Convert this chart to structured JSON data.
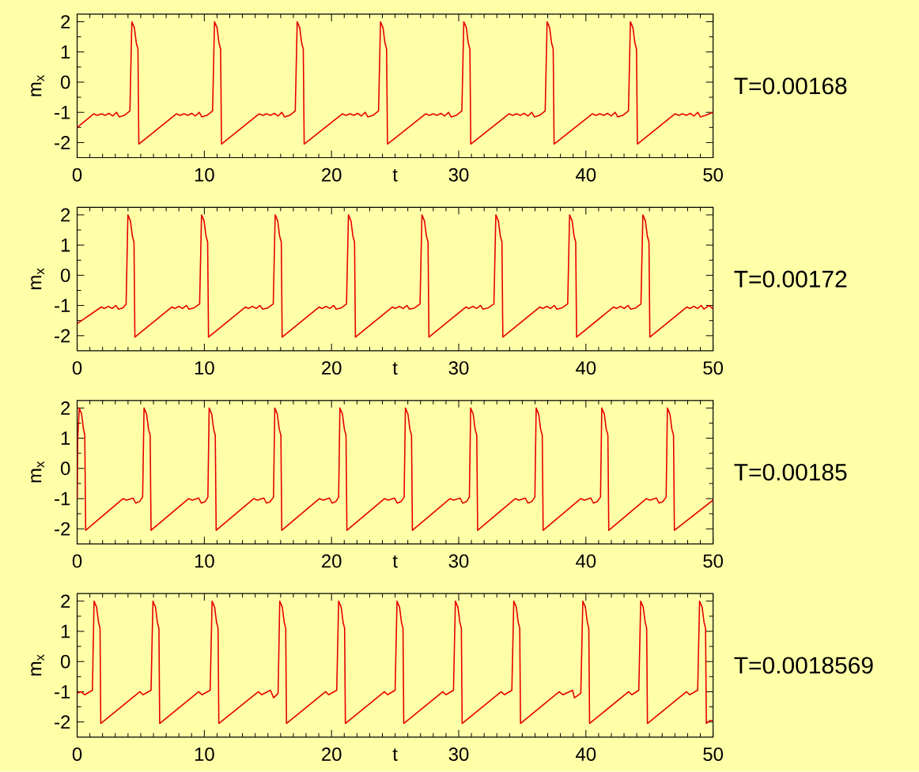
{
  "chart_data": [
    {
      "type": "line",
      "xlabel": "t",
      "ylabel": "m$_{x}$",
      "annotations": [
        "T=0.00168"
      ],
      "xlim": [
        0,
        50
      ],
      "ylim": [
        -2.5,
        2.25
      ],
      "xticks": [
        0,
        10,
        20,
        30,
        40,
        50
      ],
      "yticks": [
        -2,
        -1,
        0,
        1,
        2
      ],
      "color": "#e60000",
      "x": [
        0,
        1.3,
        1.6,
        1.9,
        2.2,
        2.5,
        2.8,
        3.1,
        3.3,
        3.7,
        4.15,
        4.3,
        4.5,
        4.65,
        4.78,
        4.85,
        7.8,
        8.1,
        8.4,
        8.7,
        9.0,
        9.3,
        9.6,
        9.8,
        10.2,
        10.65,
        10.8,
        11.0,
        11.15,
        11.28,
        11.35,
        14.3,
        14.6,
        14.9,
        15.2,
        15.5,
        15.8,
        16.1,
        16.3,
        16.7,
        17.15,
        17.3,
        17.5,
        17.65,
        17.78,
        17.85,
        20.85,
        21.15,
        21.45,
        21.75,
        22.05,
        22.35,
        22.65,
        22.85,
        23.25,
        23.7,
        23.85,
        24.05,
        24.2,
        24.33,
        24.4,
        27.4,
        27.7,
        28.0,
        28.3,
        28.6,
        28.9,
        29.2,
        29.4,
        29.8,
        30.25,
        30.4,
        30.6,
        30.75,
        30.88,
        30.95,
        33.95,
        34.25,
        34.55,
        34.85,
        35.15,
        35.45,
        35.75,
        35.95,
        36.35,
        36.8,
        36.95,
        37.15,
        37.3,
        37.43,
        37.5,
        40.5,
        40.8,
        41.1,
        41.4,
        41.7,
        42.0,
        42.3,
        42.5,
        42.9,
        43.35,
        43.5,
        43.7,
        43.85,
        43.98,
        44.05,
        47.0,
        47.3,
        47.6,
        47.9,
        48.2,
        48.5,
        48.8,
        49.0,
        49.4,
        50
      ],
      "values": [
        -1.5,
        -1.05,
        -1.1,
        -1.05,
        -1.1,
        -1.03,
        -1.12,
        -1.0,
        -1.15,
        -1.1,
        -0.95,
        2.0,
        1.8,
        1.3,
        1.1,
        -2.05,
        -1.05,
        -1.1,
        -1.05,
        -1.1,
        -1.03,
        -1.12,
        -1.0,
        -1.15,
        -1.1,
        -0.95,
        2.0,
        1.8,
        1.3,
        1.1,
        -2.05,
        -1.05,
        -1.1,
        -1.05,
        -1.1,
        -1.03,
        -1.12,
        -1.0,
        -1.15,
        -1.1,
        -0.95,
        2.0,
        1.8,
        1.3,
        1.1,
        -2.05,
        -1.05,
        -1.1,
        -1.05,
        -1.1,
        -1.03,
        -1.12,
        -1.0,
        -1.15,
        -1.1,
        -0.95,
        2.0,
        1.8,
        1.3,
        1.1,
        -2.05,
        -1.05,
        -1.1,
        -1.05,
        -1.1,
        -1.03,
        -1.12,
        -1.0,
        -1.15,
        -1.1,
        -0.95,
        2.0,
        1.8,
        1.3,
        1.1,
        -2.05,
        -1.05,
        -1.1,
        -1.05,
        -1.1,
        -1.03,
        -1.12,
        -1.0,
        -1.15,
        -1.1,
        -0.95,
        2.0,
        1.8,
        1.3,
        1.1,
        -2.05,
        -1.05,
        -1.1,
        -1.05,
        -1.1,
        -1.03,
        -1.12,
        -1.0,
        -1.15,
        -1.1,
        -0.95,
        2.0,
        1.8,
        1.3,
        1.1,
        -2.05,
        -1.05,
        -1.1,
        -1.05,
        -1.1,
        -1.03,
        -1.12,
        -1.0,
        -1.15,
        -1.1,
        -1.0
      ]
    },
    {
      "type": "line",
      "xlabel": "t",
      "ylabel": "m$_{x}$",
      "annotations": [
        "T=0.00172"
      ],
      "xlim": [
        0,
        50
      ],
      "ylim": [
        -2.5,
        2.25
      ],
      "xticks": [
        0,
        10,
        20,
        30,
        40,
        50
      ],
      "yticks": [
        -2,
        -1,
        0,
        1,
        2
      ],
      "color": "#e60000",
      "x": [
        0,
        1.9,
        2.15,
        2.45,
        2.75,
        3.05,
        3.25,
        3.6,
        3.85,
        3.99,
        4.19,
        4.34,
        4.47,
        4.54,
        7.44,
        7.69,
        7.99,
        8.29,
        8.59,
        8.79,
        9.19,
        9.63,
        9.78,
        9.98,
        10.13,
        10.26,
        10.33,
        13.23,
        13.48,
        13.78,
        14.08,
        14.38,
        14.58,
        14.98,
        15.42,
        15.57,
        15.77,
        15.92,
        16.05,
        16.12,
        19.02,
        19.27,
        19.57,
        19.87,
        20.17,
        20.37,
        20.77,
        21.18,
        21.33,
        21.53,
        21.68,
        21.81,
        21.88,
        24.78,
        25.03,
        25.33,
        25.63,
        25.93,
        26.13,
        26.53,
        26.96,
        27.11,
        27.31,
        27.46,
        27.59,
        27.66,
        30.56,
        30.81,
        31.11,
        31.41,
        31.71,
        31.91,
        32.31,
        32.77,
        32.92,
        33.12,
        33.27,
        33.4,
        33.47,
        36.37,
        36.62,
        36.92,
        37.22,
        37.52,
        37.72,
        38.12,
        38.57,
        38.72,
        38.92,
        39.07,
        39.2,
        39.27,
        42.17,
        42.42,
        42.72,
        43.02,
        43.32,
        43.52,
        43.92,
        44.33,
        44.48,
        44.68,
        44.83,
        44.96,
        45.03,
        47.93,
        48.18,
        48.48,
        48.78,
        49.08,
        49.28,
        49.7,
        50
      ],
      "values": [
        -1.6,
        -1.05,
        -1.1,
        -1.03,
        -1.1,
        -1.0,
        -1.12,
        -1.08,
        -0.95,
        2.0,
        1.8,
        1.3,
        1.1,
        -2.05,
        -1.05,
        -1.1,
        -1.03,
        -1.1,
        -1.0,
        -1.12,
        -1.08,
        -0.95,
        2.0,
        1.8,
        1.3,
        1.1,
        -2.05,
        -1.05,
        -1.1,
        -1.03,
        -1.1,
        -1.0,
        -1.12,
        -1.08,
        -0.95,
        2.0,
        1.8,
        1.3,
        1.1,
        -2.05,
        -1.05,
        -1.1,
        -1.03,
        -1.1,
        -1.0,
        -1.12,
        -1.08,
        -0.95,
        2.0,
        1.8,
        1.3,
        1.1,
        -2.05,
        -1.05,
        -1.1,
        -1.03,
        -1.1,
        -1.0,
        -1.12,
        -1.08,
        -0.95,
        2.0,
        1.8,
        1.3,
        1.1,
        -2.05,
        -1.05,
        -1.1,
        -1.03,
        -1.1,
        -1.0,
        -1.12,
        -1.08,
        -0.95,
        2.0,
        1.8,
        1.3,
        1.1,
        -2.05,
        -1.05,
        -1.1,
        -1.03,
        -1.1,
        -1.0,
        -1.12,
        -1.08,
        -0.95,
        2.0,
        1.8,
        1.3,
        1.1,
        -2.05,
        -1.05,
        -1.1,
        -1.03,
        -1.1,
        -1.0,
        -1.12,
        -1.08,
        -0.95,
        2.0,
        1.8,
        1.3,
        1.1,
        -2.05,
        -1.05,
        -1.1,
        -1.03,
        -1.1,
        -1.0,
        -1.12,
        -1.0,
        -1.12
      ]
    },
    {
      "type": "line",
      "xlabel": "t",
      "ylabel": "m$_{x}$",
      "annotations": [
        "T=0.00185"
      ],
      "xlim": [
        0,
        50
      ],
      "ylim": [
        -2.5,
        2.25
      ],
      "xticks": [
        0,
        10,
        20,
        30,
        40,
        50
      ],
      "yticks": [
        -2,
        -1,
        0,
        1,
        2
      ],
      "color": "#e60000",
      "x": [
        0,
        0.05,
        0.17,
        0.35,
        0.5,
        0.6,
        0.67,
        3.6,
        3.9,
        4.4,
        4.6,
        4.9,
        5.15,
        5.26,
        5.46,
        5.61,
        5.74,
        5.81,
        8.76,
        9.06,
        9.56,
        9.76,
        10.06,
        10.28,
        10.38,
        10.58,
        10.73,
        10.86,
        10.93,
        13.88,
        14.18,
        14.68,
        14.88,
        15.18,
        15.44,
        15.54,
        15.74,
        15.89,
        16.02,
        16.09,
        19.04,
        19.34,
        19.84,
        20.04,
        20.34,
        20.56,
        20.66,
        20.86,
        21.01,
        21.14,
        21.21,
        24.16,
        24.46,
        24.96,
        25.16,
        25.46,
        25.71,
        25.81,
        26.01,
        26.16,
        26.29,
        26.36,
        29.31,
        29.61,
        30.11,
        30.31,
        30.61,
        30.84,
        30.94,
        31.14,
        31.29,
        31.42,
        31.49,
        34.44,
        34.74,
        35.24,
        35.44,
        35.74,
        35.99,
        36.09,
        36.29,
        36.44,
        36.57,
        36.64,
        39.59,
        39.89,
        40.39,
        40.59,
        40.89,
        41.15,
        41.25,
        41.45,
        41.6,
        41.73,
        41.8,
        44.75,
        45.05,
        45.55,
        45.75,
        46.05,
        46.31,
        46.41,
        46.61,
        46.76,
        46.89,
        46.96,
        50
      ],
      "values": [
        -1.0,
        1.0,
        2.0,
        1.8,
        1.3,
        1.1,
        -2.05,
        -1.0,
        -1.05,
        -0.98,
        -1.15,
        -1.1,
        -0.95,
        2.0,
        1.8,
        1.3,
        1.1,
        -2.05,
        -1.0,
        -1.05,
        -0.98,
        -1.15,
        -1.1,
        -0.95,
        2.0,
        1.8,
        1.3,
        1.1,
        -2.05,
        -1.0,
        -1.05,
        -0.98,
        -1.15,
        -1.1,
        -0.95,
        2.0,
        1.8,
        1.3,
        1.1,
        -2.05,
        -1.0,
        -1.05,
        -0.98,
        -1.15,
        -1.1,
        -0.95,
        2.0,
        1.8,
        1.3,
        1.1,
        -2.05,
        -1.0,
        -1.05,
        -0.98,
        -1.15,
        -1.1,
        -0.95,
        2.0,
        1.8,
        1.3,
        1.1,
        -2.05,
        -1.0,
        -1.05,
        -0.98,
        -1.15,
        -1.1,
        -0.95,
        2.0,
        1.8,
        1.3,
        1.1,
        -2.05,
        -1.0,
        -1.05,
        -0.98,
        -1.15,
        -1.1,
        -0.95,
        2.0,
        1.8,
        1.3,
        1.1,
        -2.05,
        -1.0,
        -1.05,
        -0.98,
        -1.15,
        -1.1,
        -0.95,
        2.0,
        1.8,
        1.3,
        1.1,
        -2.05,
        -1.0,
        -1.05,
        -0.98,
        -1.15,
        -1.1,
        -0.95,
        2.0,
        1.8,
        1.3,
        1.1,
        -2.05,
        -1.05
      ]
    },
    {
      "type": "line",
      "xlabel": "t",
      "ylabel": "m$_{x}$",
      "annotations": [
        "T=0.0018569"
      ],
      "xlim": [
        0,
        50
      ],
      "ylim": [
        -2.5,
        2.25
      ],
      "xticks": [
        0,
        10,
        20,
        30,
        40,
        50
      ],
      "yticks": [
        -2,
        -1,
        0,
        1,
        2
      ],
      "color": "#e60000",
      "x": [
        0,
        0.3,
        0.6,
        1.2,
        1.33,
        1.53,
        1.68,
        1.8,
        1.86,
        4.93,
        5.18,
        5.81,
        5.96,
        6.16,
        6.31,
        6.43,
        6.49,
        9.56,
        9.81,
        10.46,
        10.61,
        10.81,
        10.96,
        11.08,
        11.14,
        14.25,
        14.5,
        15.2,
        15.45,
        15.8,
        15.93,
        16.13,
        16.28,
        16.4,
        16.46,
        19.53,
        19.78,
        20.41,
        20.56,
        20.76,
        20.91,
        21.03,
        21.09,
        24.16,
        24.41,
        25.0,
        25.15,
        25.35,
        25.5,
        25.62,
        25.68,
        28.75,
        29.0,
        29.59,
        29.74,
        29.94,
        30.09,
        30.21,
        30.27,
        33.34,
        33.59,
        34.18,
        34.33,
        34.53,
        34.68,
        34.8,
        34.86,
        37.9,
        38.2,
        38.95,
        39.1,
        39.6,
        39.76,
        39.96,
        40.11,
        40.23,
        40.29,
        43.36,
        43.61,
        44.16,
        44.31,
        44.51,
        44.66,
        44.78,
        44.84,
        47.91,
        48.16,
        48.79,
        48.94,
        49.14,
        49.29,
        49.41,
        49.47,
        49.75,
        50
      ],
      "values": [
        -1.05,
        -1.0,
        -1.1,
        -0.95,
        2.0,
        1.8,
        1.3,
        1.1,
        -2.05,
        -1.0,
        -1.1,
        -0.95,
        2.0,
        1.8,
        1.3,
        1.1,
        -2.05,
        -1.0,
        -1.1,
        -0.95,
        2.0,
        1.8,
        1.3,
        1.1,
        -2.05,
        -1.0,
        -1.1,
        -0.95,
        -1.2,
        -1.05,
        2.0,
        1.8,
        1.3,
        1.1,
        -2.05,
        -1.0,
        -1.1,
        -0.95,
        2.0,
        1.8,
        1.3,
        1.1,
        -2.05,
        -1.0,
        -1.1,
        -0.95,
        2.0,
        1.8,
        1.3,
        1.1,
        -2.05,
        -1.0,
        -1.1,
        -0.95,
        2.0,
        1.8,
        1.3,
        1.1,
        -2.05,
        -1.0,
        -1.1,
        -0.95,
        2.0,
        1.8,
        1.3,
        1.1,
        -2.05,
        -1.0,
        -1.1,
        -0.95,
        -1.2,
        -1.05,
        2.0,
        1.8,
        1.3,
        1.1,
        -2.05,
        -1.0,
        -1.1,
        -0.95,
        2.0,
        1.8,
        1.3,
        1.1,
        -2.05,
        -1.0,
        -1.1,
        -0.95,
        2.0,
        1.8,
        1.3,
        1.1,
        -2.05,
        -1.95,
        -1.95
      ]
    }
  ]
}
